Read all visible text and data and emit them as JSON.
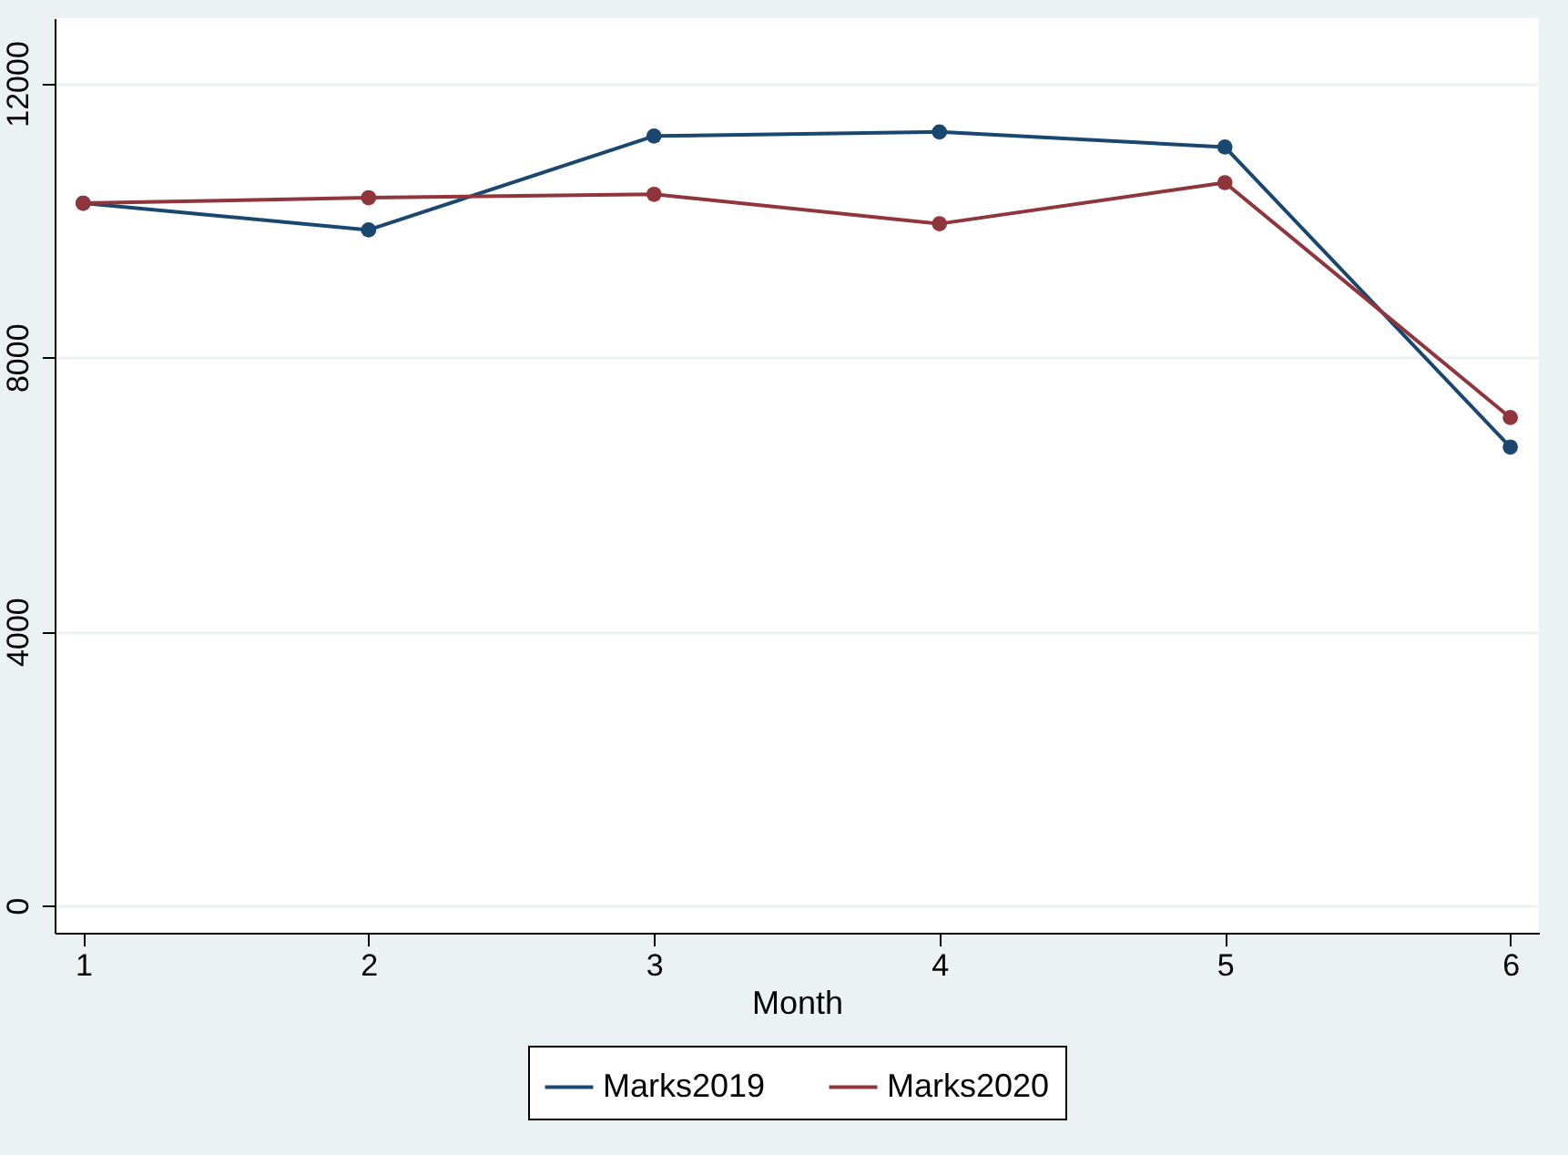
{
  "chart_data": {
    "type": "line",
    "xlabel": "Month",
    "x": [
      1,
      2,
      3,
      4,
      5,
      6
    ],
    "series": [
      {
        "name": "Marks2019",
        "color": "#1a476f",
        "values": [
          10250,
          9860,
          11230,
          11290,
          11070,
          6690
        ]
      },
      {
        "name": "Marks2020",
        "color": "#90353b",
        "values": [
          10250,
          10330,
          10380,
          9950,
          10550,
          7120
        ]
      }
    ],
    "xlim": [
      0.9,
      6.1
    ],
    "xticks": [
      1,
      2,
      3,
      4,
      5,
      6
    ],
    "ylim": [
      -400,
      12950
    ],
    "yticks": [
      0,
      4000,
      8000,
      12000
    ],
    "grid": "y",
    "legend": "bottom",
    "marker": "circle",
    "line_style": "solid"
  }
}
